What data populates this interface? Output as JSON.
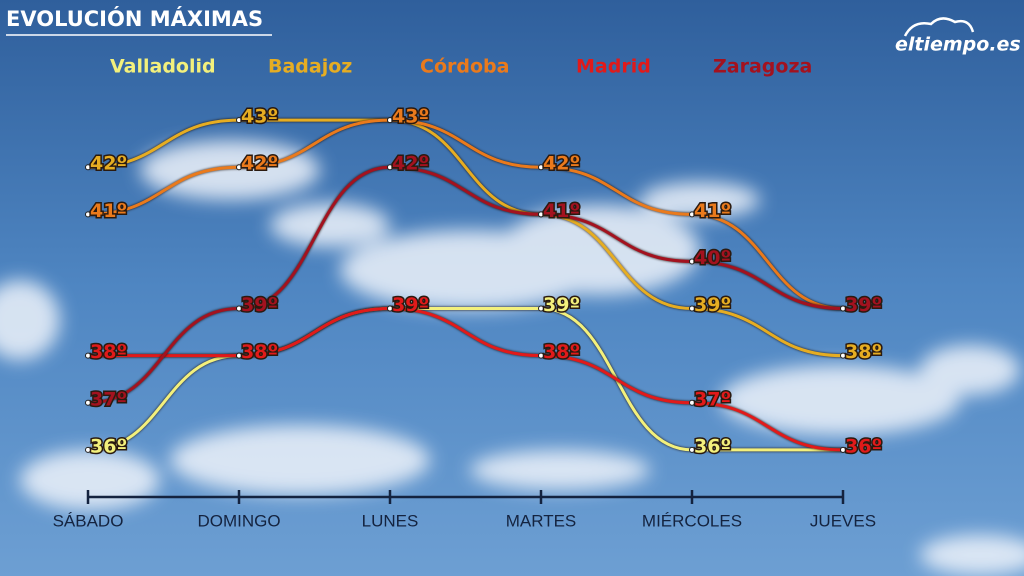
{
  "logo": "eltiempo.es",
  "chart_data": {
    "type": "line",
    "title": "EVOLUCIÓN MÁXIMAS",
    "categories": [
      "SÁBADO",
      "DOMINGO",
      "LUNES",
      "MARTES",
      "MIÉRCOLES",
      "JUEVES"
    ],
    "ylim": [
      35,
      44
    ],
    "series": [
      {
        "name": "Valladolid",
        "color": "#f3f07c",
        "values": [
          36,
          38,
          39,
          39,
          36,
          36
        ],
        "value_labels": [
          "36º",
          null,
          null,
          "39º",
          "36º",
          null
        ]
      },
      {
        "name": "Badajoz",
        "color": "#e6ad22",
        "values": [
          42,
          43,
          43,
          41,
          39,
          38
        ],
        "value_labels": [
          "42º",
          "43º",
          null,
          null,
          "39º",
          "38º"
        ]
      },
      {
        "name": "Córdoba",
        "color": "#ea7a1c",
        "values": [
          41,
          42,
          43,
          42,
          41,
          39
        ],
        "value_labels": [
          "41º",
          "42º",
          "43º",
          "42º",
          "41º",
          null
        ]
      },
      {
        "name": "Madrid",
        "color": "#e11a1a",
        "values": [
          38,
          38,
          39,
          38,
          37,
          36
        ],
        "value_labels": [
          "38º",
          "38º",
          "39º",
          "38º",
          "37º",
          "36º"
        ]
      },
      {
        "name": "Zaragoza",
        "color": "#a3121f",
        "values": [
          37,
          39,
          42,
          41,
          40,
          39
        ],
        "value_labels": [
          "37º",
          "39º",
          "42º",
          "41º",
          "40º",
          "39º"
        ]
      }
    ]
  }
}
